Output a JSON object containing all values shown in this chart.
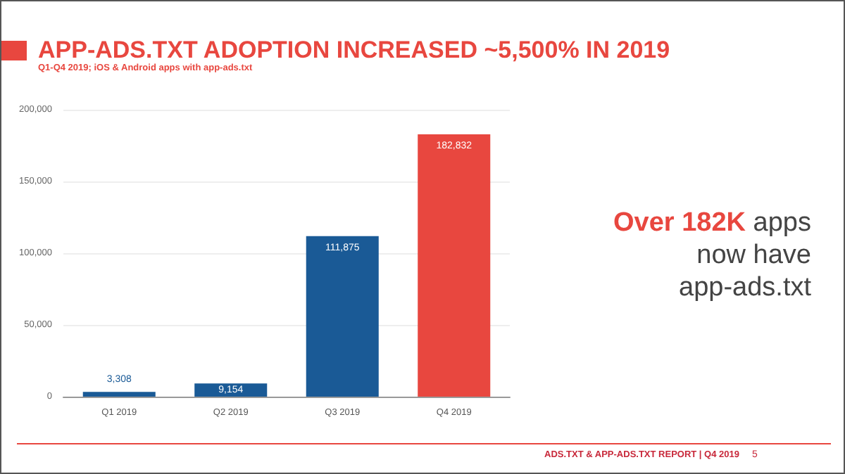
{
  "chart_data": {
    "type": "bar",
    "title": "APP-ADS.TXT ADOPTION INCREASED ~5,500% IN 2019",
    "subtitle": "Q1-Q4 2019; iOS & Android apps with app-ads.txt",
    "categories": [
      "Q1 2019",
      "Q2 2019",
      "Q3 2019",
      "Q4 2019"
    ],
    "values": [
      3308,
      9154,
      111875,
      182832
    ],
    "colors": [
      "#1a5a96",
      "#1a5a96",
      "#1a5a96",
      "#e8473f"
    ],
    "value_labels": [
      "3,308",
      "9,154",
      "111,875",
      "182,832"
    ],
    "ylim": [
      0,
      200000
    ],
    "yticks": [
      0,
      {
        "value": 50000,
        "label": "50,000"
      },
      {
        "value": 100000,
        "label": "100,000"
      },
      {
        "value": 150000,
        "label": "150,000"
      },
      {
        "value": 200000,
        "label": "200,000"
      }
    ],
    "grid": "y",
    "annotations": [
      "Over 182K",
      "apps now have app-ads.txt",
      "ADS.TXT & APP-ADS.TXT REPORT | Q4 2019",
      "5"
    ]
  }
}
